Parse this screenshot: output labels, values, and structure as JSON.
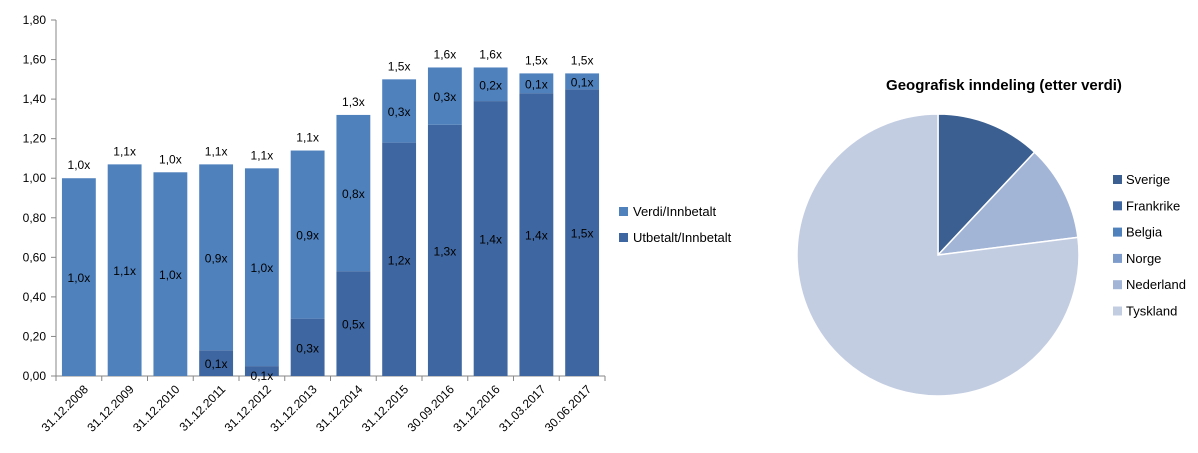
{
  "chart_data": [
    {
      "type": "bar",
      "stacked": true,
      "categories": [
        "31.12.2008",
        "31.12.2009",
        "31.12.2010",
        "31.12.2011",
        "31.12.2012",
        "31.12.2013",
        "31.12.2014",
        "31.12.2015",
        "30.09.2016",
        "31.12.2016",
        "31.03.2017",
        "30.06.2017"
      ],
      "series": [
        {
          "name": "Utbetalt/Innbetalt",
          "color": "#3e66a0",
          "values": [
            0,
            0,
            0,
            0.13,
            0.05,
            0.29,
            0.53,
            1.18,
            1.27,
            1.39,
            1.43,
            1.45
          ],
          "labels": [
            "",
            "",
            "",
            "0,1x",
            "0,1x",
            "0,3x",
            "0,5x",
            "1,2x",
            "1,3x",
            "1,4x",
            "1,4x",
            "1,5x"
          ]
        },
        {
          "name": "Verdi/Innbetalt",
          "color": "#4f81bd",
          "values": [
            1.0,
            1.07,
            1.03,
            0.94,
            1.0,
            0.85,
            0.79,
            0.32,
            0.29,
            0.17,
            0.1,
            0.08
          ],
          "labels": [
            "1,0x",
            "1,1x",
            "1,0x",
            "0,9x",
            "1,0x",
            "0,9x",
            "0,8x",
            "0,3x",
            "0,3x",
            "0,2x",
            "0,1x",
            "0,1x"
          ]
        }
      ],
      "totals": [
        "1,0x",
        "1,1x",
        "1,0x",
        "1,1x",
        "1,1x",
        "1,1x",
        "1,3x",
        "1,5x",
        "1,6x",
        "1,6x",
        "1,5x",
        "1,5x"
      ],
      "ylim": [
        0,
        1.8
      ],
      "yticks": [
        "0,00",
        "0,20",
        "0,40",
        "0,60",
        "0,80",
        "1,00",
        "1,20",
        "1,40",
        "1,60",
        "1,80"
      ],
      "legend_position": "right",
      "grid": false
    },
    {
      "type": "pie",
      "title": "Geografisk inndeling (etter verdi)",
      "slices": [
        {
          "label": "Sverige",
          "value": 12,
          "color": "#3b5f90"
        },
        {
          "label": "Frankrike",
          "value": 0,
          "color": "#3e66a0"
        },
        {
          "label": "Belgia",
          "value": 0,
          "color": "#4f81bd"
        },
        {
          "label": "Norge",
          "value": 0,
          "color": "#7d9ccb"
        },
        {
          "label": "Nederland",
          "value": 11,
          "color": "#a3b5d6"
        },
        {
          "label": "Tyskland",
          "value": 77,
          "color": "#c3cde2"
        }
      ],
      "legend_position": "right"
    }
  ]
}
